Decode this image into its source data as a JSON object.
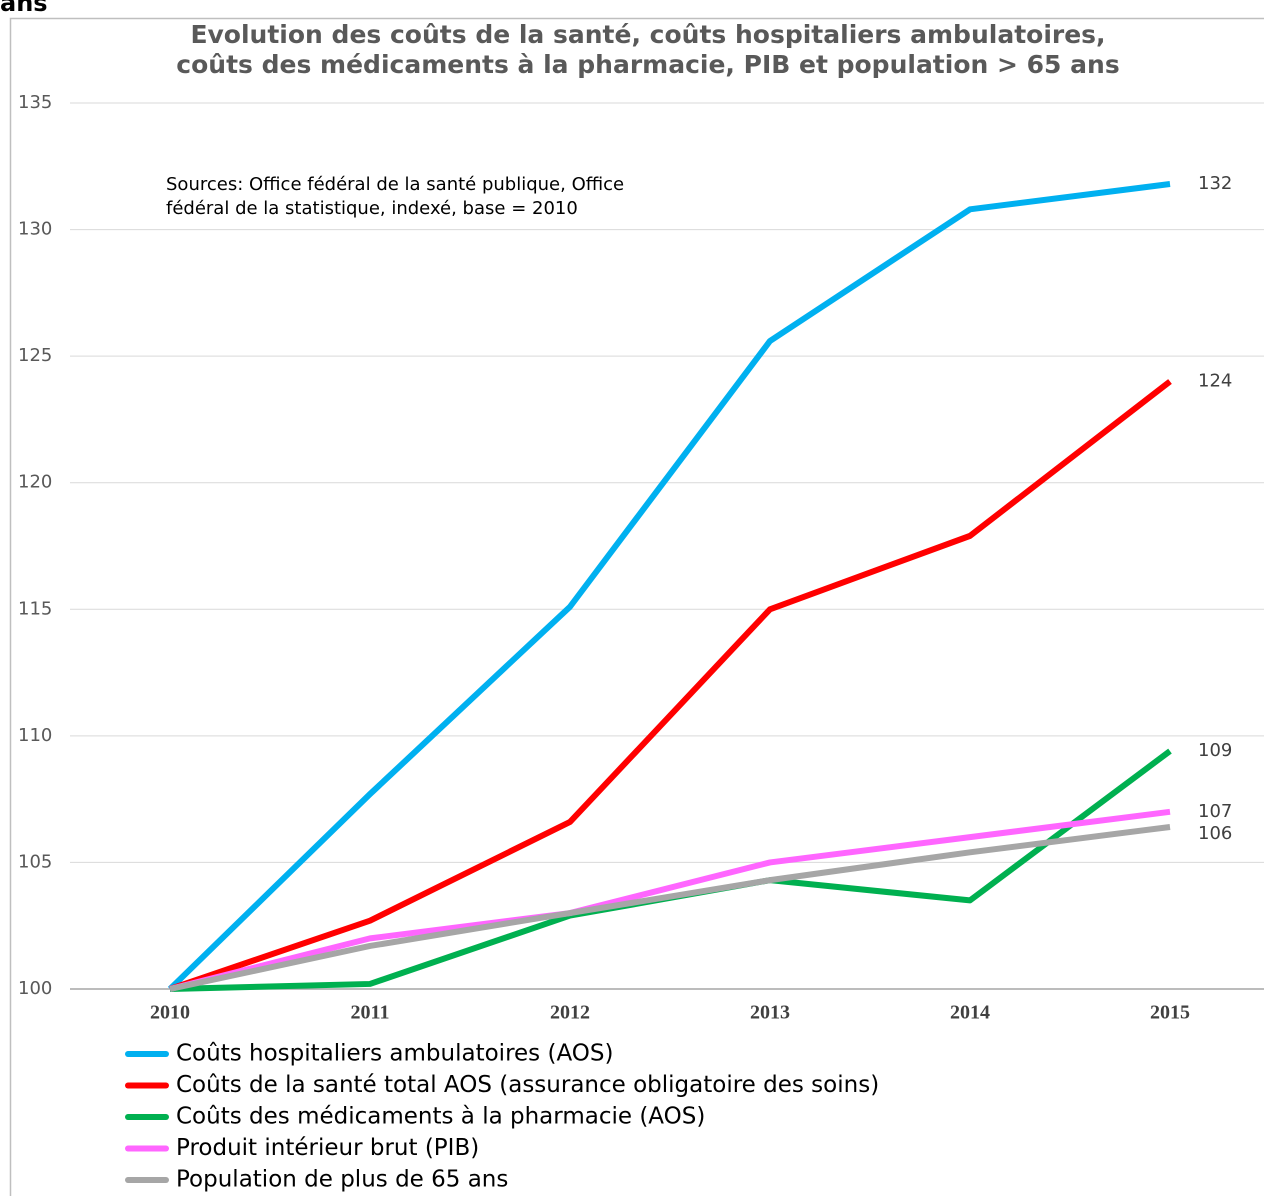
{
  "header_fragment": "ans",
  "chart_data": {
    "type": "line",
    "title": [
      "Evolution des coûts de la santé, coûts hospitaliers ambulatoires,",
      "coûts des médicaments à la pharmacie, PIB et population > 65 ans"
    ],
    "annotation": [
      "Sources: Office fédéral de la santé publique, Office",
      "fédéral de la statistique, indexé, base = 2010"
    ],
    "categories": [
      "2010",
      "2011",
      "2012",
      "2013",
      "2014",
      "2015"
    ],
    "ylim": [
      100,
      135
    ],
    "yticks": [
      100,
      105,
      110,
      115,
      120,
      125,
      130,
      135
    ],
    "grid": true,
    "legend": "bottom-left",
    "series": [
      {
        "name": "Coûts hospitaliers ambulatoires (AOS)",
        "color": "#00b0f0",
        "values": [
          100,
          107.7,
          115.1,
          125.6,
          130.8,
          131.8
        ],
        "value_labels": [
          null,
          null,
          null,
          null,
          null,
          "132"
        ]
      },
      {
        "name": "Coûts de la santé total AOS (assurance obligatoire des soins)",
        "color": "#ff0000",
        "values": [
          100,
          102.7,
          106.6,
          115.0,
          117.9,
          124.0
        ],
        "value_labels": [
          null,
          null,
          null,
          null,
          null,
          "124"
        ]
      },
      {
        "name": "Coûts des médicaments à la pharmacie (AOS)",
        "color": "#00b050",
        "values": [
          100,
          100.2,
          102.9,
          104.3,
          103.5,
          109.4
        ],
        "value_labels": [
          null,
          null,
          null,
          null,
          null,
          "109"
        ]
      },
      {
        "name": "Produit intérieur brut (PIB)",
        "color": "#ff66ff",
        "values": [
          100,
          102.0,
          103.0,
          105.0,
          106.0,
          107.0
        ],
        "value_labels": [
          null,
          null,
          null,
          null,
          null,
          "107"
        ]
      },
      {
        "name": "Population de plus de 65 ans",
        "color": "#a6a6a6",
        "values": [
          100,
          101.7,
          103.0,
          104.3,
          105.4,
          106.4
        ],
        "value_labels": [
          null,
          null,
          null,
          null,
          null,
          "106"
        ]
      }
    ]
  }
}
